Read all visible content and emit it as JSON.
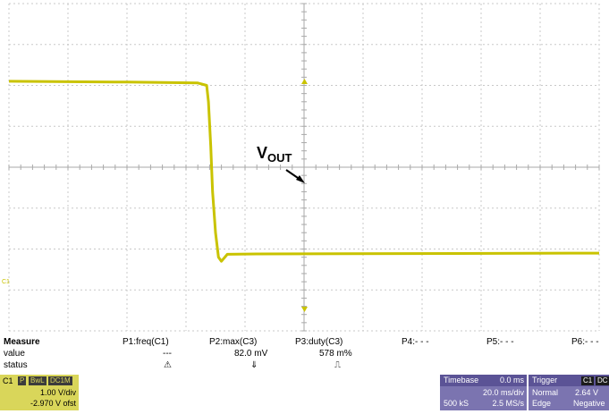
{
  "annotation": {
    "main": "V",
    "sub": "OUT"
  },
  "colors": {
    "trace": "#c9c300",
    "grid": "#c8c8c8",
    "panel": "#7b74b0",
    "channel": "#d9d65a"
  },
  "chart_data": {
    "type": "line",
    "grid": true,
    "x_divisions": 10,
    "y_divisions": 8,
    "series": [
      {
        "points": [
          [
            0.0,
            2.1
          ],
          [
            2.0,
            2.08
          ],
          [
            3.2,
            2.06
          ],
          [
            3.35,
            2.0
          ],
          [
            3.38,
            1.6
          ],
          [
            3.42,
            0.5
          ],
          [
            3.45,
            -0.6
          ],
          [
            3.48,
            -1.2
          ],
          [
            3.5,
            -1.6
          ],
          [
            3.55,
            -2.2
          ],
          [
            3.6,
            -2.3
          ],
          [
            3.7,
            -2.13
          ],
          [
            4.2,
            -2.12
          ],
          [
            10.0,
            -2.1
          ]
        ]
      }
    ]
  },
  "measure": {
    "headers": [
      "Measure",
      "P1:freq(C1)",
      "P2:max(C3)",
      "P3:duty(C3)",
      "P4:- - -",
      "P5:- - -",
      "P6:- - -"
    ],
    "value_label": "value",
    "status_label": "status",
    "values": [
      "---",
      "82.0 mV",
      "578 m%"
    ],
    "status": [
      "⚠",
      "⇓",
      "⎍"
    ]
  },
  "channel": {
    "label": "C1",
    "badges": [
      "P",
      "BwL",
      "DC1M"
    ],
    "volts_div": "1.00 V/div",
    "offset": "-2.970 V ofst"
  },
  "timebase": {
    "title": "Timebase",
    "delay": "0.0 ms",
    "time_div": "20.0 ms/div",
    "samples": "500 kS",
    "rate": "2.5 MS/s"
  },
  "trigger": {
    "title": "Trigger",
    "badge1": "C1",
    "badge2": "DC",
    "mode": "Normal",
    "level": "2.64 V",
    "type": "Edge",
    "slope": "Negative"
  }
}
